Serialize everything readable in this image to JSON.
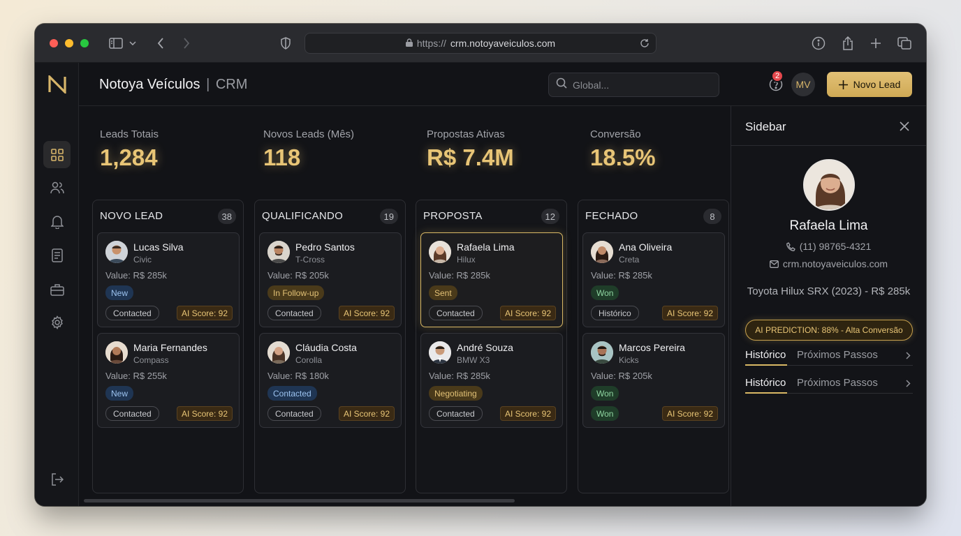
{
  "browser": {
    "url_scheme": "https://",
    "url_host": "crm.notoyaveiculos.com"
  },
  "header": {
    "brand": "Notoya Veículos",
    "separator": "|",
    "brand_suffix": "CRM",
    "search_placeholder": "Global...",
    "notification_count": "2",
    "user_initials": "MV",
    "new_lead_label": "Novo Lead"
  },
  "kpis": [
    {
      "label": "Leads Totais",
      "value": "1,284"
    },
    {
      "label": "Novos Leads (Mês)",
      "value": "118"
    },
    {
      "label": "Propostas Ativas",
      "value": "R$ 7.4M"
    },
    {
      "label": "Conversão",
      "value": "18.5%"
    }
  ],
  "columns": [
    {
      "title": "NOVO LEAD",
      "count": "38",
      "cards": [
        {
          "name": "Lucas Silva",
          "model": "Civic",
          "value": "Value: R$ 285k",
          "status": "New",
          "pill": "Contacted",
          "score": "AI Score: 92"
        },
        {
          "name": "Maria Fernandes",
          "model": "Compass",
          "value": "Value: R$ 255k",
          "status": "New",
          "pill": "Contacted",
          "score": "AI Score: 92"
        }
      ]
    },
    {
      "title": "QUALIFICANDO",
      "count": "19",
      "cards": [
        {
          "name": "Pedro Santos",
          "model": "T-Cross",
          "value": "Value: R$ 205k",
          "status": "In Follow-up",
          "pill": "Contacted",
          "score": "AI Score: 92"
        },
        {
          "name": "Cláudia Costa",
          "model": "Corolla",
          "value": "Value: R$ 180k",
          "status": "Contacted",
          "pill": "Contacted",
          "score": "AI Score: 92"
        }
      ]
    },
    {
      "title": "PROPOSTA",
      "count": "12",
      "cards": [
        {
          "name": "Rafaela Lima",
          "model": "Hilux",
          "value": "Value: R$ 285k",
          "status": "Sent",
          "pill": "Contacted",
          "score": "AI Score: 92"
        },
        {
          "name": "André Souza",
          "model": "BMW X3",
          "value": "Value: R$ 285k",
          "status": "Negotiating",
          "pill": "Contacted",
          "score": "AI Score: 92"
        }
      ]
    },
    {
      "title": "FECHADO",
      "count": "8",
      "cards": [
        {
          "name": "Ana Oliveira",
          "model": "Creta",
          "value": "Value: R$ 285k",
          "status": "Won",
          "pill": "Histórico",
          "score": "AI Score: 92"
        },
        {
          "name": "Marcos Pereira",
          "model": "Kicks",
          "value": "Value: R$ 205k",
          "status": "Won",
          "pill": "Won",
          "score": "AI Score: 92"
        }
      ]
    }
  ],
  "sidebar": {
    "title": "Sidebar",
    "name": "Rafaela Lima",
    "phone": "(11) 98765-4321",
    "email": "crm.notoyaveiculos.com",
    "vehicle": "Toyota Hilux SRX (2023) - R$ 285k",
    "prediction": "AI PREDICTION: 88% - Alta Conversão",
    "tabs": [
      {
        "active": "Histórico",
        "inactive": "Próximos Passos"
      },
      {
        "active": "Histórico",
        "inactive": "Próximos Passos"
      }
    ]
  },
  "colors": {
    "accent": "#d9b865",
    "status_blue": "#9cc3f0",
    "status_amber": "#e2c176",
    "status_green": "#8fd6a1",
    "badge_red": "#e5484d"
  }
}
